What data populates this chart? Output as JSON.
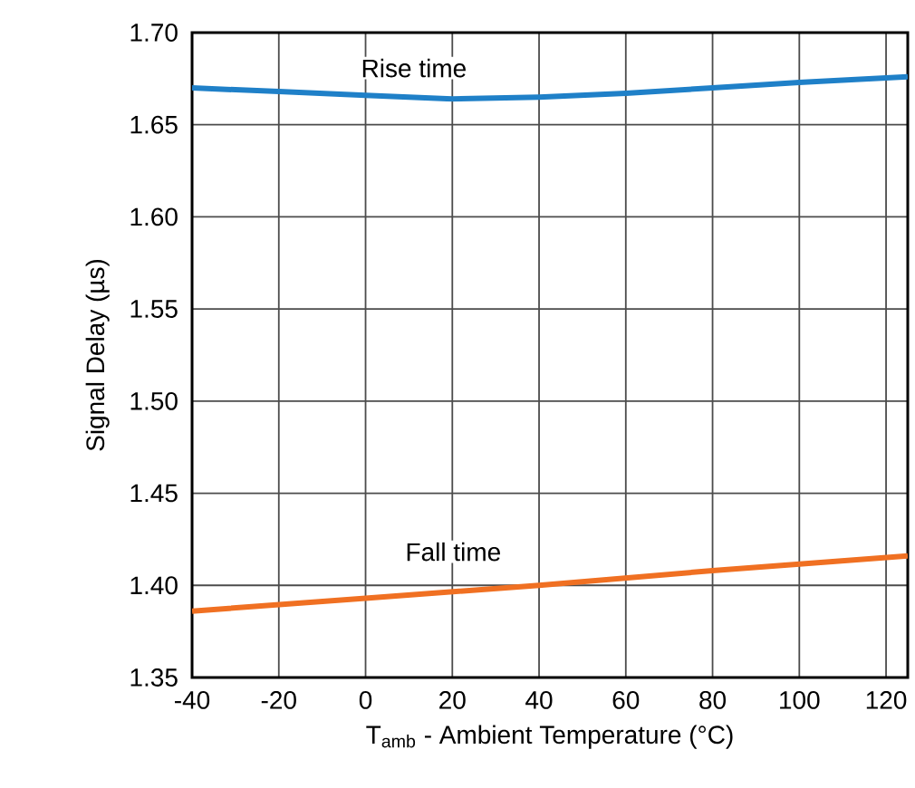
{
  "chart_data": {
    "type": "line",
    "xlabel": "T$_{amb}$ - Ambient Temperature (°C)",
    "ylabel": "Signal Delay (µs)",
    "xlim": [
      -40,
      125
    ],
    "xticks": [
      -40,
      -20,
      0,
      20,
      40,
      60,
      80,
      100,
      120
    ],
    "ylim": [
      1.35,
      1.7
    ],
    "yticks": [
      1.35,
      {
        "value": 1.4,
        "label": "1.40"
      },
      1.45,
      {
        "value": 1.5,
        "label": "1.50"
      },
      1.55,
      {
        "value": 1.6,
        "label": "1.60"
      },
      1.65,
      {
        "value": 1.7,
        "label": "1.70"
      }
    ],
    "grid": true,
    "marker": "none",
    "line_style": "solid",
    "series": [
      {
        "color": "#1f80c8",
        "x": [
          -40,
          -20,
          0,
          20,
          40,
          60,
          80,
          100,
          125
        ],
        "values": [
          1.67,
          1.668,
          1.666,
          1.664,
          1.665,
          1.667,
          1.67,
          1.673,
          1.676
        ]
      },
      {
        "color": "#f07022",
        "x": [
          -40,
          0,
          40,
          80,
          125
        ],
        "values": [
          1.386,
          1.393,
          1.4,
          1.408,
          1.416
        ]
      }
    ],
    "annotations": [
      "Rise time",
      "Fall time"
    ]
  }
}
